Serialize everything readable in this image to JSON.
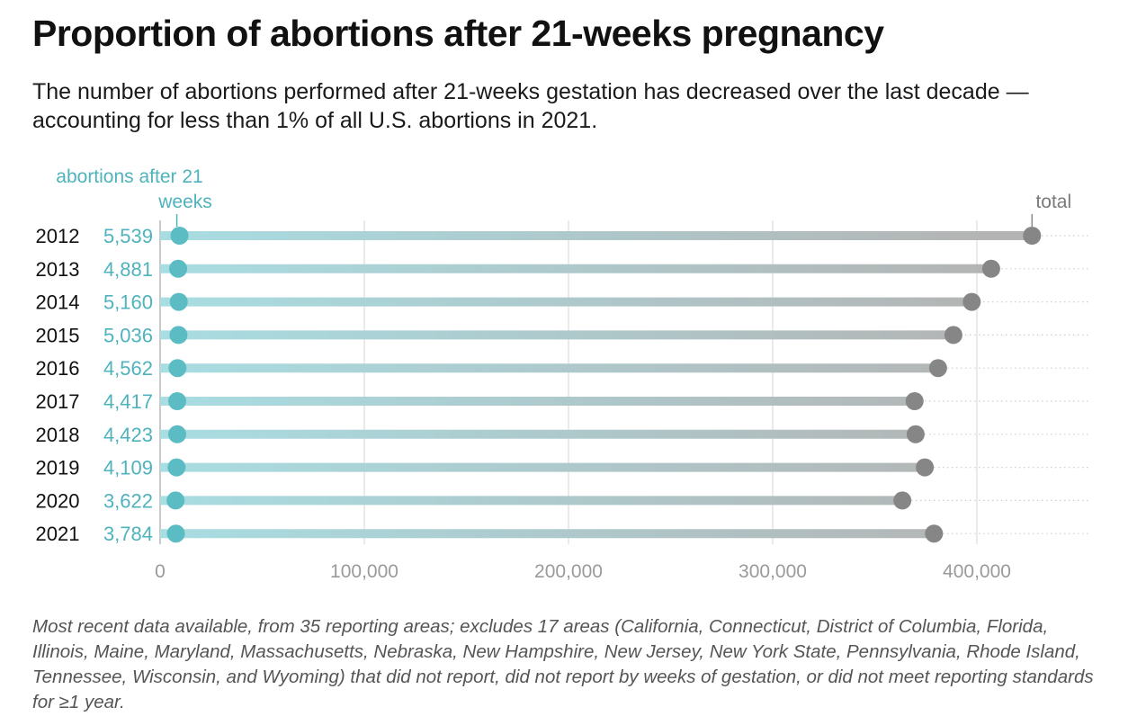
{
  "title": "Proportion of abortions after 21-weeks pregnancy",
  "subtitle": "The number of abortions performed after 21-weeks gestation has decreased over the last decade — accounting for less than 1% of all U.S. abortions in 2021.",
  "note": "Most recent data available, from 35 reporting areas; excludes 17 areas (California, Connecticut, District of Columbia, Florida, Illinois, Maine, Maryland, Massachusetts, Nebraska, New Hampshire, New Jersey, New York State, Pennsylvania, Rhode Island, Tennessee, Wisconsin, and Wyoming) that did not report, did not report by weeks of gestation, or did not meet reporting standards for ≥1 year.",
  "chart_data": {
    "type": "dumbbell",
    "categories": [
      "2012",
      "2013",
      "2014",
      "2015",
      "2016",
      "2017",
      "2018",
      "2019",
      "2020",
      "2021"
    ],
    "series": [
      {
        "name": "abortions after 21 weeks",
        "values": [
          5539,
          4881,
          5160,
          5036,
          4562,
          4417,
          4423,
          4109,
          3622,
          3784
        ],
        "labels": [
          "5,539",
          "4,881",
          "5,160",
          "5,036",
          "4,562",
          "4,417",
          "4,423",
          "4,109",
          "3,622",
          "3,784"
        ],
        "color": "#5bbcc4"
      },
      {
        "name": "total",
        "values": [
          427000,
          407000,
          397500,
          388500,
          381000,
          369500,
          370000,
          374500,
          363500,
          379000
        ],
        "color": "#868686"
      }
    ],
    "xlim": [
      0,
      455000
    ],
    "xticks": [
      0,
      100000,
      200000,
      300000,
      400000
    ],
    "xtick_labels": [
      "0",
      "100,000",
      "200,000",
      "300,000",
      "400,000"
    ],
    "grid": true
  }
}
